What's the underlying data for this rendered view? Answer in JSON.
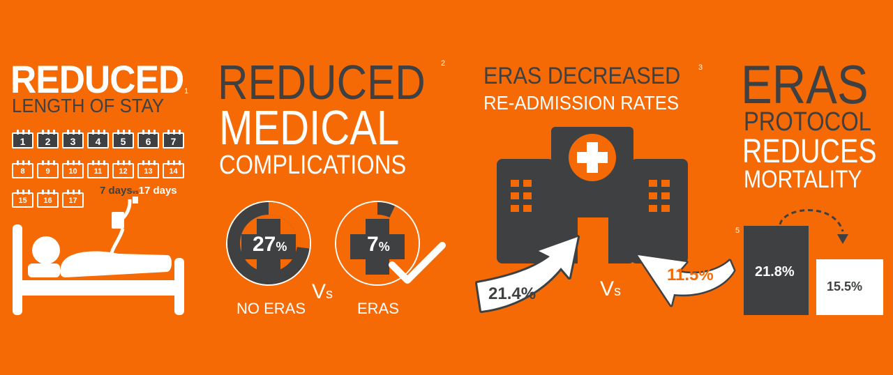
{
  "colors": {
    "background": "#f56a05",
    "dark": "#3e4042",
    "light": "#ffffff"
  },
  "stay": {
    "title": "REDUCED",
    "ref": "1",
    "subtitle": "LENGTH OF STAY",
    "dark_days": [
      "1",
      "2",
      "3",
      "4",
      "5",
      "6",
      "7"
    ],
    "light_days": [
      "8",
      "9",
      "10",
      "11",
      "12",
      "13",
      "14",
      "15",
      "16",
      "17"
    ],
    "compare_left": "7 days",
    "vs": "vs",
    "compare_right": "17 days",
    "icon": "patient-in-bed-icon"
  },
  "complications": {
    "line1": "REDUCED",
    "ref": "2",
    "line2": "MEDICAL",
    "line3": "COMPLICATIONS",
    "no_eras": {
      "value": "27",
      "unit": "%",
      "label": "NO ERAS",
      "fraction": 0.27
    },
    "eras": {
      "value": "7",
      "unit": "%",
      "label": "ERAS",
      "fraction": 0.07
    },
    "vs_big": "V",
    "vs_small": "s",
    "check_icon": "checkmark-icon"
  },
  "readmission": {
    "title": "ERAS DECREASED",
    "ref": "3",
    "subtitle": "RE-ADMISSION RATES",
    "left_value": "21.4%",
    "right_value": "11.5%",
    "vs_big": "V",
    "vs_small": "s",
    "icon": "hospital-icon"
  },
  "mortality": {
    "line1": "ERAS",
    "line2": "PROTOCOL",
    "line3": "REDUCES",
    "line4": "MORTALITY",
    "ref": "5",
    "bar_no_eras": "21.8%",
    "bar_eras": "15.5%",
    "arrow_icon": "dashed-arrow-icon"
  }
}
